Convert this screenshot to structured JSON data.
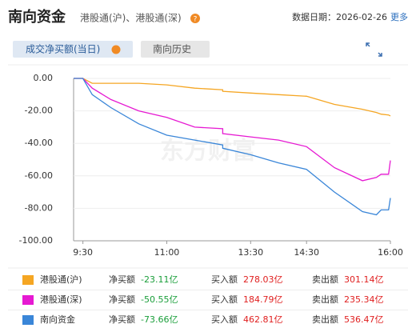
{
  "header": {
    "title": "南向资金",
    "subtitle": "港股通(沪)、港股通(深)",
    "help": "?",
    "date": "数据日期：2026-02-26",
    "more": "更多"
  },
  "tabs": [
    "成交净买额(当日)",
    "南向历史"
  ],
  "watermark": "东方财富",
  "chart_data": {
    "type": "line",
    "x": [
      "9:20",
      "9:30",
      "9:40",
      "10:00",
      "10:30",
      "11:00",
      "11:30",
      "12:00",
      "13:00",
      "13:30",
      "14:00",
      "14:30",
      "15:00",
      "15:30",
      "15:45",
      "15:50",
      "15:58",
      "16:00"
    ],
    "xlim": [
      "9:20",
      "16:00"
    ],
    "xticks": [
      "9:30",
      "11:00",
      "13:30",
      "14:30",
      "16:00"
    ],
    "ylim": [
      -100,
      0
    ],
    "yticks": [
      {
        "value": 0,
        "label": "0.00"
      },
      {
        "value": -20,
        "label": "-20.00"
      },
      {
        "value": -40,
        "label": "-40.00"
      },
      {
        "value": -60,
        "label": "-60.00"
      },
      {
        "value": -80,
        "label": "-80.00"
      },
      {
        "value": -100,
        "label": "-100.00"
      }
    ],
    "grid": true,
    "series": [
      {
        "name": "港股通(沪)",
        "color": "#f5a623",
        "values": [
          0,
          0,
          -3,
          -3,
          -3,
          -4,
          -6,
          -7,
          -8,
          -9,
          -10,
          -11,
          -16,
          -19,
          -21,
          -22,
          -22.5,
          -23.11
        ]
      },
      {
        "name": "港股通(深)",
        "color": "#e619d2",
        "values": [
          0,
          0,
          -6,
          -13,
          -20,
          -24,
          -30,
          -31,
          -34,
          -36,
          -38,
          -42,
          -55,
          -63,
          -61,
          -59,
          -59,
          -50.55
        ]
      },
      {
        "name": "南向资金",
        "color": "#3a86d8",
        "values": [
          0,
          0,
          -10,
          -18,
          -28,
          -35,
          -38,
          -41,
          -43,
          -47,
          -52,
          -56,
          -70,
          -82,
          -84,
          -81,
          -81,
          -73.66
        ]
      }
    ]
  },
  "table": {
    "rows": [
      [
        "净买额",
        "-23.11亿",
        "买入额",
        "278.03亿",
        "卖出额",
        "301.14亿"
      ],
      [
        "净买额",
        "-50.55亿",
        "买入额",
        "184.79亿",
        "卖出额",
        "235.34亿"
      ],
      [
        "净买额",
        "-73.66亿",
        "买入额",
        "462.81亿",
        "卖出额",
        "536.47亿"
      ]
    ]
  }
}
